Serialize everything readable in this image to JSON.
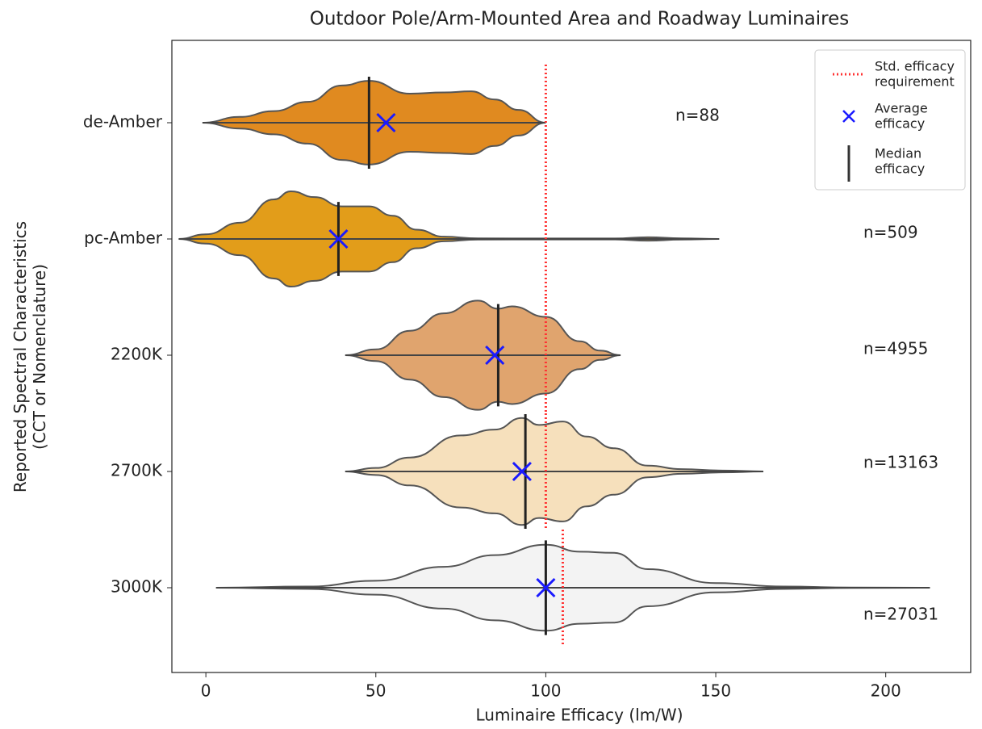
{
  "chart_data": {
    "type": "violin",
    "title": "Outdoor Pole/Arm-Mounted Area and Roadway Luminaires",
    "xlabel": "Luminaire Efficacy (lm/W)",
    "ylabel": "Reported Spectral Characteristics\n(CCT or Nomenclature)",
    "categories": [
      "de-Amber",
      "pc-Amber",
      "2200K",
      "2700K",
      "3000K"
    ],
    "xlim": [
      -10,
      225
    ],
    "xticks": [
      0,
      50,
      100,
      150,
      200
    ],
    "violins": [
      {
        "color": "#e08a20",
        "kde_x": [
          -1,
          10,
          20,
          30,
          40,
          48,
          60,
          70,
          78,
          85,
          92,
          100
        ],
        "kde_width": [
          0,
          0.05,
          0.1,
          0.18,
          0.32,
          0.36,
          0.25,
          0.26,
          0.27,
          0.2,
          0.11,
          0
        ],
        "median": 48,
        "mean": 53,
        "std_requirement": 100,
        "n_label": "n=88"
      },
      {
        "color": "#e29d1a",
        "kde_x": [
          -8,
          0,
          10,
          20,
          25,
          32,
          40,
          48,
          55,
          62,
          70,
          80,
          120,
          130,
          140,
          151
        ],
        "kde_width": [
          0,
          0.04,
          0.14,
          0.34,
          0.41,
          0.36,
          0.28,
          0.28,
          0.2,
          0.08,
          0.02,
          0.005,
          0.004,
          0.015,
          0.005,
          0
        ],
        "median": 39,
        "mean": 39,
        "std_requirement": 100,
        "n_label": "n=509"
      },
      {
        "color": "#e0a46e",
        "kde_x": [
          41,
          50,
          60,
          70,
          80,
          86,
          90,
          100,
          110,
          116,
          122
        ],
        "kde_width": [
          0,
          0.05,
          0.21,
          0.36,
          0.47,
          0.4,
          0.42,
          0.33,
          0.12,
          0.04,
          0
        ],
        "median": 86,
        "mean": 85,
        "std_requirement": 100,
        "n_label": "n=4955"
      },
      {
        "color": "#f6e0bc",
        "kde_x": [
          41,
          50,
          60,
          75,
          85,
          93,
          98,
          105,
          112,
          120,
          130,
          140,
          152,
          164
        ],
        "kde_width": [
          0,
          0.03,
          0.12,
          0.31,
          0.36,
          0.46,
          0.4,
          0.43,
          0.3,
          0.2,
          0.05,
          0.02,
          0.008,
          0
        ],
        "median": 94,
        "mean": 93,
        "std_requirement": 100,
        "n_label": "n=13163"
      },
      {
        "color": "#f3f3f3",
        "kde_x": [
          3,
          30,
          50,
          70,
          85,
          100,
          110,
          120,
          130,
          150,
          170,
          190,
          213
        ],
        "kde_width": [
          0,
          0.01,
          0.06,
          0.18,
          0.28,
          0.37,
          0.31,
          0.3,
          0.16,
          0.04,
          0.01,
          0.002,
          0
        ],
        "median": 100,
        "mean": 100,
        "std_requirement": 105,
        "n_label": "n=27031"
      }
    ],
    "legend": {
      "position": "upper right",
      "std": "Std. efficacy\nrequirement",
      "mean": "Average\nefficacy",
      "median": "Median\nefficacy",
      "std_color": "#ff3333",
      "mean_color": "#1a1aff"
    }
  }
}
